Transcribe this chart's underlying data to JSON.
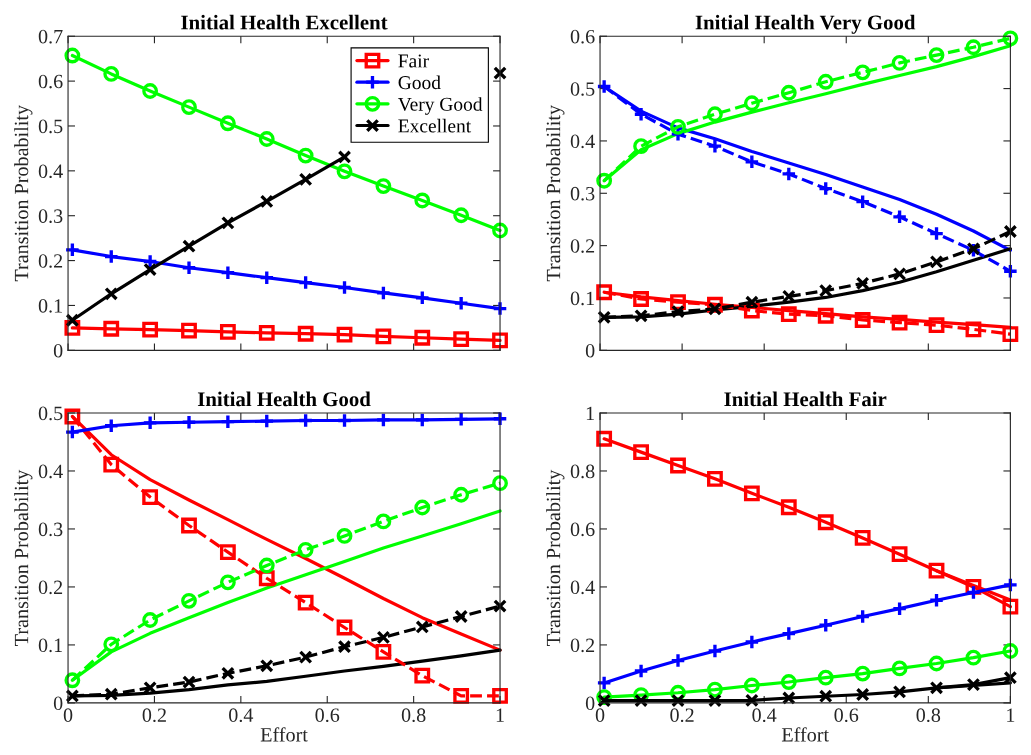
{
  "chart_data": [
    {
      "type": "line",
      "title": "Initial Health Excellent",
      "ylabel": "Transition Probability",
      "x": [
        0.01,
        0.1,
        0.19,
        0.28,
        0.37,
        0.46,
        0.55,
        0.64,
        0.73,
        0.82,
        0.91,
        1
      ],
      "xlim": [
        0,
        1
      ],
      "xticks": [
        0,
        0.2,
        0.4,
        0.6,
        0.8,
        1
      ],
      "ylim": [
        0,
        0.7
      ],
      "yticks": [
        0,
        0.1,
        0.2,
        0.3,
        0.4,
        0.5,
        0.6,
        0.7
      ],
      "tick_labels": "y",
      "legend": "top right",
      "series": [
        {
          "name": "Fair",
          "color": "#ff0000",
          "line_style": "solid",
          "marker": "square",
          "values": [
            0.05,
            0.048,
            0.046,
            0.044,
            0.041,
            0.039,
            0.037,
            0.035,
            0.031,
            0.028,
            0.025,
            0.022
          ]
        },
        {
          "name": "Good",
          "color": "#0000ff",
          "line_style": "solid",
          "marker": "cross",
          "values": [
            0.224,
            0.209,
            0.198,
            0.184,
            0.173,
            0.162,
            0.151,
            0.14,
            0.128,
            0.117,
            0.105,
            0.093
          ]
        },
        {
          "name": "Very Good",
          "color": "#00ff00",
          "line_style": "solid",
          "marker": "circle",
          "values": [
            0.657,
            0.616,
            0.578,
            0.542,
            0.506,
            0.471,
            0.434,
            0.399,
            0.366,
            0.334,
            0.301,
            0.267
          ]
        },
        {
          "name": "Excellent",
          "color": "#000000",
          "line_style": "solid",
          "marker": "x",
          "values": [
            0.067,
            0.126,
            0.18,
            0.232,
            0.284,
            0.332,
            0.381,
            0.431,
            null,
            null,
            null,
            0.618
          ]
        }
      ]
    },
    {
      "type": "line",
      "title": "Initial Health Very Good",
      "ylabel": "Transition Probability",
      "x": [
        0.01,
        0.1,
        0.19,
        0.28,
        0.37,
        0.46,
        0.55,
        0.64,
        0.73,
        0.82,
        0.91,
        1
      ],
      "xlim": [
        0,
        1
      ],
      "xticks": [
        0,
        0.2,
        0.4,
        0.6,
        0.8,
        1
      ],
      "ylim": [
        0,
        0.6
      ],
      "yticks": [
        0,
        0.1,
        0.2,
        0.3,
        0.4,
        0.5,
        0.6
      ],
      "tick_labels": "y",
      "series": [
        {
          "color": "#ff0000",
          "line_style": "solid",
          "marker": "none",
          "values": [
            0.111,
            0.102,
            0.095,
            0.088,
            0.082,
            0.076,
            0.07,
            0.064,
            0.059,
            0.054,
            0.049,
            0.044
          ]
        },
        {
          "color": "#0000ff",
          "line_style": "solid",
          "marker": "none",
          "values": [
            0.504,
            0.457,
            0.425,
            0.404,
            0.38,
            0.358,
            0.336,
            0.312,
            0.288,
            0.26,
            0.228,
            0.191
          ]
        },
        {
          "color": "#00ff00",
          "line_style": "solid",
          "marker": "none",
          "values": [
            0.324,
            0.383,
            0.414,
            0.436,
            0.455,
            0.473,
            0.49,
            0.508,
            0.525,
            0.542,
            0.561,
            0.582
          ]
        },
        {
          "color": "#000000",
          "line_style": "solid",
          "marker": "none",
          "values": [
            0.063,
            0.064,
            0.069,
            0.077,
            0.084,
            0.092,
            0.101,
            0.114,
            0.13,
            0.15,
            0.172,
            0.194
          ]
        },
        {
          "color": "#ff0000",
          "line_style": "dashed",
          "marker": "square",
          "values": [
            0.111,
            0.098,
            0.092,
            0.087,
            0.076,
            0.069,
            0.066,
            0.058,
            0.053,
            0.048,
            0.04,
            0.031
          ]
        },
        {
          "color": "#0000ff",
          "line_style": "dashed",
          "marker": "cross",
          "values": [
            0.504,
            0.451,
            0.413,
            0.39,
            0.36,
            0.337,
            0.309,
            0.284,
            0.255,
            0.223,
            0.191,
            0.151
          ]
        },
        {
          "color": "#00ff00",
          "line_style": "dashed",
          "marker": "circle",
          "values": [
            0.324,
            0.39,
            0.427,
            0.451,
            0.472,
            0.492,
            0.513,
            0.531,
            0.549,
            0.564,
            0.579,
            0.596
          ]
        },
        {
          "color": "#000000",
          "line_style": "dashed",
          "marker": "x",
          "values": [
            0.063,
            0.066,
            0.074,
            0.079,
            0.092,
            0.103,
            0.114,
            0.128,
            0.146,
            0.169,
            0.194,
            0.227
          ]
        }
      ]
    },
    {
      "type": "line",
      "title": "Initial Health Good",
      "xlabel": "Effort",
      "ylabel": "Transition Probability",
      "x": [
        0.01,
        0.1,
        0.19,
        0.28,
        0.37,
        0.46,
        0.55,
        0.64,
        0.73,
        0.82,
        0.91,
        1
      ],
      "xlim": [
        0,
        1
      ],
      "xticks": [
        0,
        0.2,
        0.4,
        0.6,
        0.8,
        1
      ],
      "ylim": [
        0,
        0.5
      ],
      "yticks": [
        0,
        0.1,
        0.2,
        0.3,
        0.4,
        0.5
      ],
      "series": [
        {
          "color": "#ff0000",
          "line_style": "solid",
          "marker": "none",
          "values": [
            0.494,
            0.428,
            0.385,
            0.35,
            0.316,
            0.282,
            0.249,
            0.215,
            0.18,
            0.147,
            0.119,
            0.091
          ]
        },
        {
          "color": "#00ff00",
          "line_style": "solid",
          "marker": "none",
          "values": [
            0.039,
            0.088,
            0.12,
            0.147,
            0.173,
            0.198,
            0.221,
            0.244,
            0.267,
            0.288,
            0.309,
            0.331
          ]
        },
        {
          "color": "#000000",
          "line_style": "solid",
          "marker": "none",
          "values": [
            0.012,
            0.013,
            0.017,
            0.023,
            0.031,
            0.037,
            0.046,
            0.055,
            0.063,
            0.072,
            0.081,
            0.091
          ]
        },
        {
          "color": "#ff0000",
          "line_style": "dashed",
          "marker": "square",
          "values": [
            0.494,
            0.411,
            0.355,
            0.306,
            0.26,
            0.215,
            0.173,
            0.13,
            0.088,
            0.047,
            0.012,
            0.012
          ]
        },
        {
          "color": "#0000ff",
          "line_style": "solid",
          "marker": "cross",
          "values": [
            0.467,
            0.478,
            0.483,
            0.484,
            0.485,
            0.486,
            0.487,
            0.487,
            0.488,
            0.488,
            0.489,
            0.49
          ]
        },
        {
          "color": "#00ff00",
          "line_style": "dashed",
          "marker": "circle",
          "values": [
            0.039,
            0.101,
            0.143,
            0.176,
            0.208,
            0.237,
            0.264,
            0.288,
            0.313,
            0.337,
            0.359,
            0.379
          ]
        },
        {
          "color": "#000000",
          "line_style": "dashed",
          "marker": "x",
          "values": [
            0.012,
            0.015,
            0.026,
            0.036,
            0.051,
            0.064,
            0.079,
            0.097,
            0.113,
            0.131,
            0.149,
            0.167
          ]
        }
      ]
    },
    {
      "type": "line",
      "title": "Initial Health Fair",
      "xlabel": "Effort",
      "ylabel": "Transition Probability",
      "x": [
        0.01,
        0.1,
        0.19,
        0.28,
        0.37,
        0.46,
        0.55,
        0.64,
        0.73,
        0.82,
        0.91,
        1
      ],
      "xlim": [
        0,
        1
      ],
      "xticks": [
        0,
        0.2,
        0.4,
        0.6,
        0.8,
        1
      ],
      "ylim": [
        0,
        1
      ],
      "yticks": [
        0,
        0.2,
        0.4,
        0.6,
        0.8,
        1
      ],
      "series": [
        {
          "color": "#ff0000",
          "line_style": "solid",
          "marker": "none",
          "values": [
            null,
            null,
            null,
            null,
            null,
            null,
            null,
            null,
            null,
            0.456,
            0.405,
            0.355
          ]
        },
        {
          "color": "#000000",
          "line_style": "solid",
          "marker": "none",
          "values": [
            null,
            null,
            null,
            null,
            null,
            null,
            null,
            null,
            null,
            0.052,
            0.06,
            0.069
          ]
        },
        {
          "color": "#ff0000",
          "line_style": "solid",
          "marker": "square",
          "values": [
            0.911,
            0.865,
            0.819,
            0.773,
            0.723,
            0.675,
            0.623,
            0.569,
            0.513,
            0.456,
            0.4,
            0.332
          ]
        },
        {
          "color": "#0000ff",
          "line_style": "solid",
          "marker": "cross",
          "values": [
            0.069,
            0.11,
            0.146,
            0.179,
            0.21,
            0.239,
            0.268,
            0.298,
            0.325,
            0.354,
            0.381,
            0.407
          ]
        },
        {
          "color": "#00ff00",
          "line_style": "solid",
          "marker": "circle",
          "values": [
            0.02,
            0.027,
            0.035,
            0.046,
            0.06,
            0.072,
            0.087,
            0.101,
            0.119,
            0.136,
            0.156,
            0.179
          ]
        },
        {
          "color": "#000000",
          "line_style": "solid",
          "marker": "x",
          "values": [
            0.008,
            0.008,
            0.008,
            0.008,
            0.009,
            0.017,
            0.023,
            0.029,
            0.038,
            0.052,
            0.063,
            0.087
          ]
        }
      ]
    }
  ]
}
